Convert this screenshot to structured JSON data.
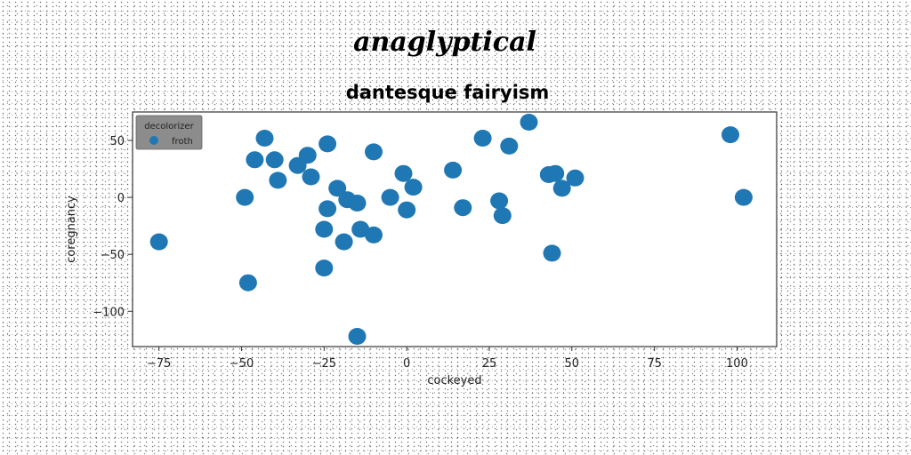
{
  "chart_data": {
    "type": "scatter",
    "suptitle": "anaglyptical",
    "title": "dantesque fairyism",
    "xlabel": "cockeyed",
    "ylabel": "coregnancy",
    "xlim": [
      -83,
      112
    ],
    "ylim": [
      -131,
      75
    ],
    "xticks": [
      -75,
      -50,
      -25,
      0,
      25,
      50,
      75,
      100
    ],
    "yticks": [
      50,
      0,
      -50,
      -100
    ],
    "grid": false,
    "legend": {
      "title": "decolorizer",
      "placement": "top-left"
    },
    "series": [
      {
        "name": "froth",
        "color": "#1f77b4",
        "points": [
          [
            -75,
            -39
          ],
          [
            -48,
            -75
          ],
          [
            -49,
            0
          ],
          [
            -46,
            33
          ],
          [
            -43,
            52
          ],
          [
            -40,
            33
          ],
          [
            -39,
            15
          ],
          [
            -33,
            28
          ],
          [
            -30,
            37
          ],
          [
            -29,
            18
          ],
          [
            -24,
            47
          ],
          [
            -25,
            -62
          ],
          [
            -25,
            -28
          ],
          [
            -24,
            -10
          ],
          [
            -21,
            8
          ],
          [
            -19,
            -39
          ],
          [
            -18,
            -2
          ],
          [
            -15,
            -5
          ],
          [
            -15,
            -122
          ],
          [
            -14,
            -28
          ],
          [
            -10,
            -33
          ],
          [
            -10,
            40
          ],
          [
            -5,
            0
          ],
          [
            -1,
            21
          ],
          [
            0,
            -11
          ],
          [
            2,
            9
          ],
          [
            14,
            24
          ],
          [
            17,
            -9
          ],
          [
            23,
            52
          ],
          [
            28,
            -3
          ],
          [
            29,
            -16
          ],
          [
            31,
            45
          ],
          [
            37,
            66
          ],
          [
            43,
            20
          ],
          [
            44,
            -49
          ],
          [
            45,
            21
          ],
          [
            47,
            8
          ],
          [
            51,
            17
          ],
          [
            98,
            55
          ],
          [
            102,
            0
          ]
        ]
      }
    ]
  }
}
